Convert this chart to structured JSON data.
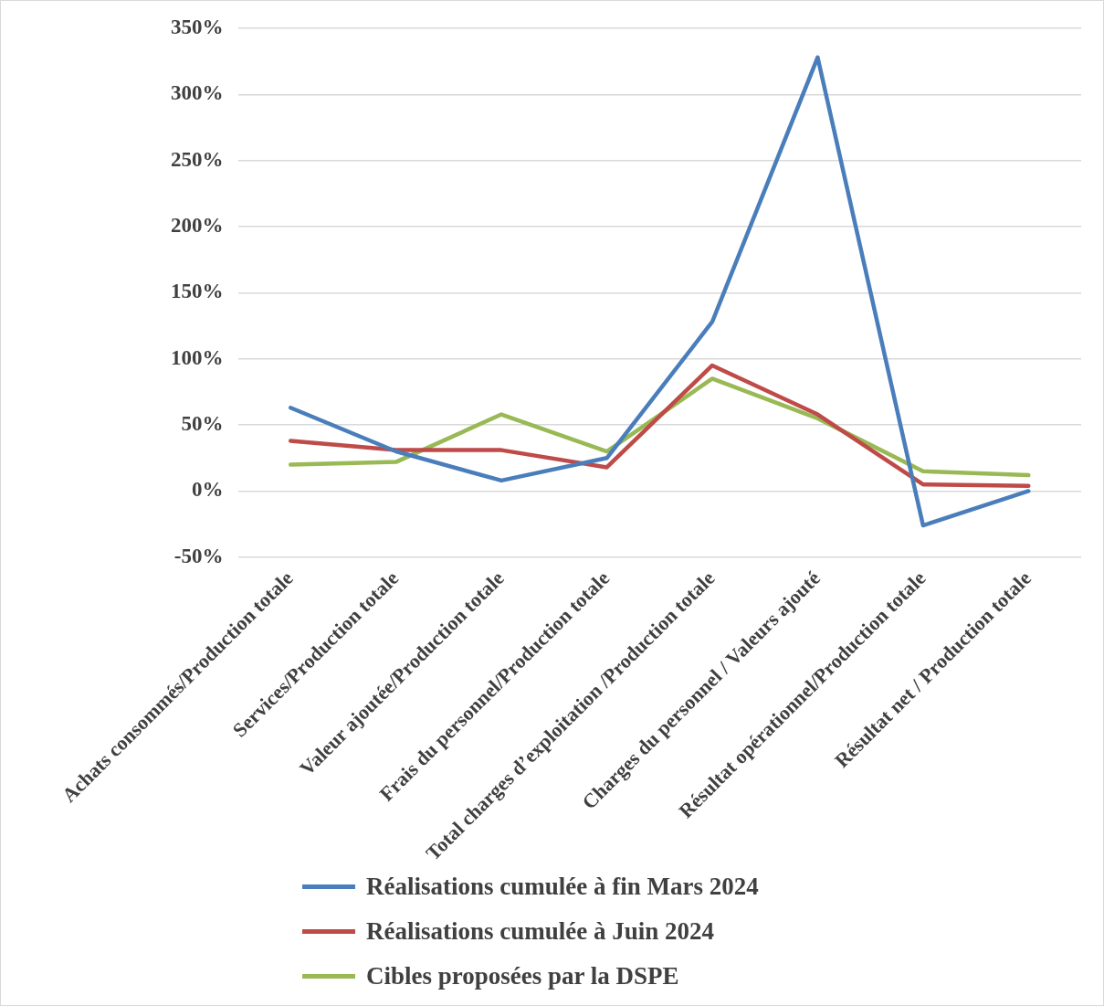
{
  "chart_data": {
    "type": "line",
    "categories": [
      "Achats consommés/Production totale",
      "Services/Production totale",
      "Valeur ajoutée/Production totale",
      "Frais du personnel/Production totale",
      "Total charges d’exploitation /Production totale",
      "Charges du personnel / Valeurs ajouté",
      "Résultat opérationnel/Production totale",
      "Résultat net / Production totale"
    ],
    "series": [
      {
        "name": "Réalisations cumulée à fin Mars 2024",
        "color": "#4a7ebb",
        "values": [
          63,
          30,
          8,
          25,
          128,
          328,
          -26,
          0
        ]
      },
      {
        "name": "Réalisations cumulée à Juin 2024",
        "color": "#be4b48",
        "values": [
          38,
          31,
          31,
          18,
          95,
          58,
          5,
          4
        ]
      },
      {
        "name": "Cibles proposées par la DSPE",
        "color": "#98b954",
        "values": [
          20,
          22,
          58,
          30,
          85,
          55,
          15,
          12
        ]
      }
    ],
    "ylim": [
      -50,
      350
    ],
    "yticks": [
      {
        "value": -50,
        "label": "-50%"
      },
      {
        "value": 0,
        "label": "0%"
      },
      {
        "value": 50,
        "label": "50%"
      },
      {
        "value": 100,
        "label": "100%"
      },
      {
        "value": 150,
        "label": "150%"
      },
      {
        "value": 200,
        "label": "200%"
      },
      {
        "value": 250,
        "label": "250%"
      },
      {
        "value": 300,
        "label": "300%"
      },
      {
        "value": 350,
        "label": "350%"
      }
    ],
    "grid": "y",
    "legend": "bottom",
    "marker": "none",
    "line_style": "solid"
  }
}
